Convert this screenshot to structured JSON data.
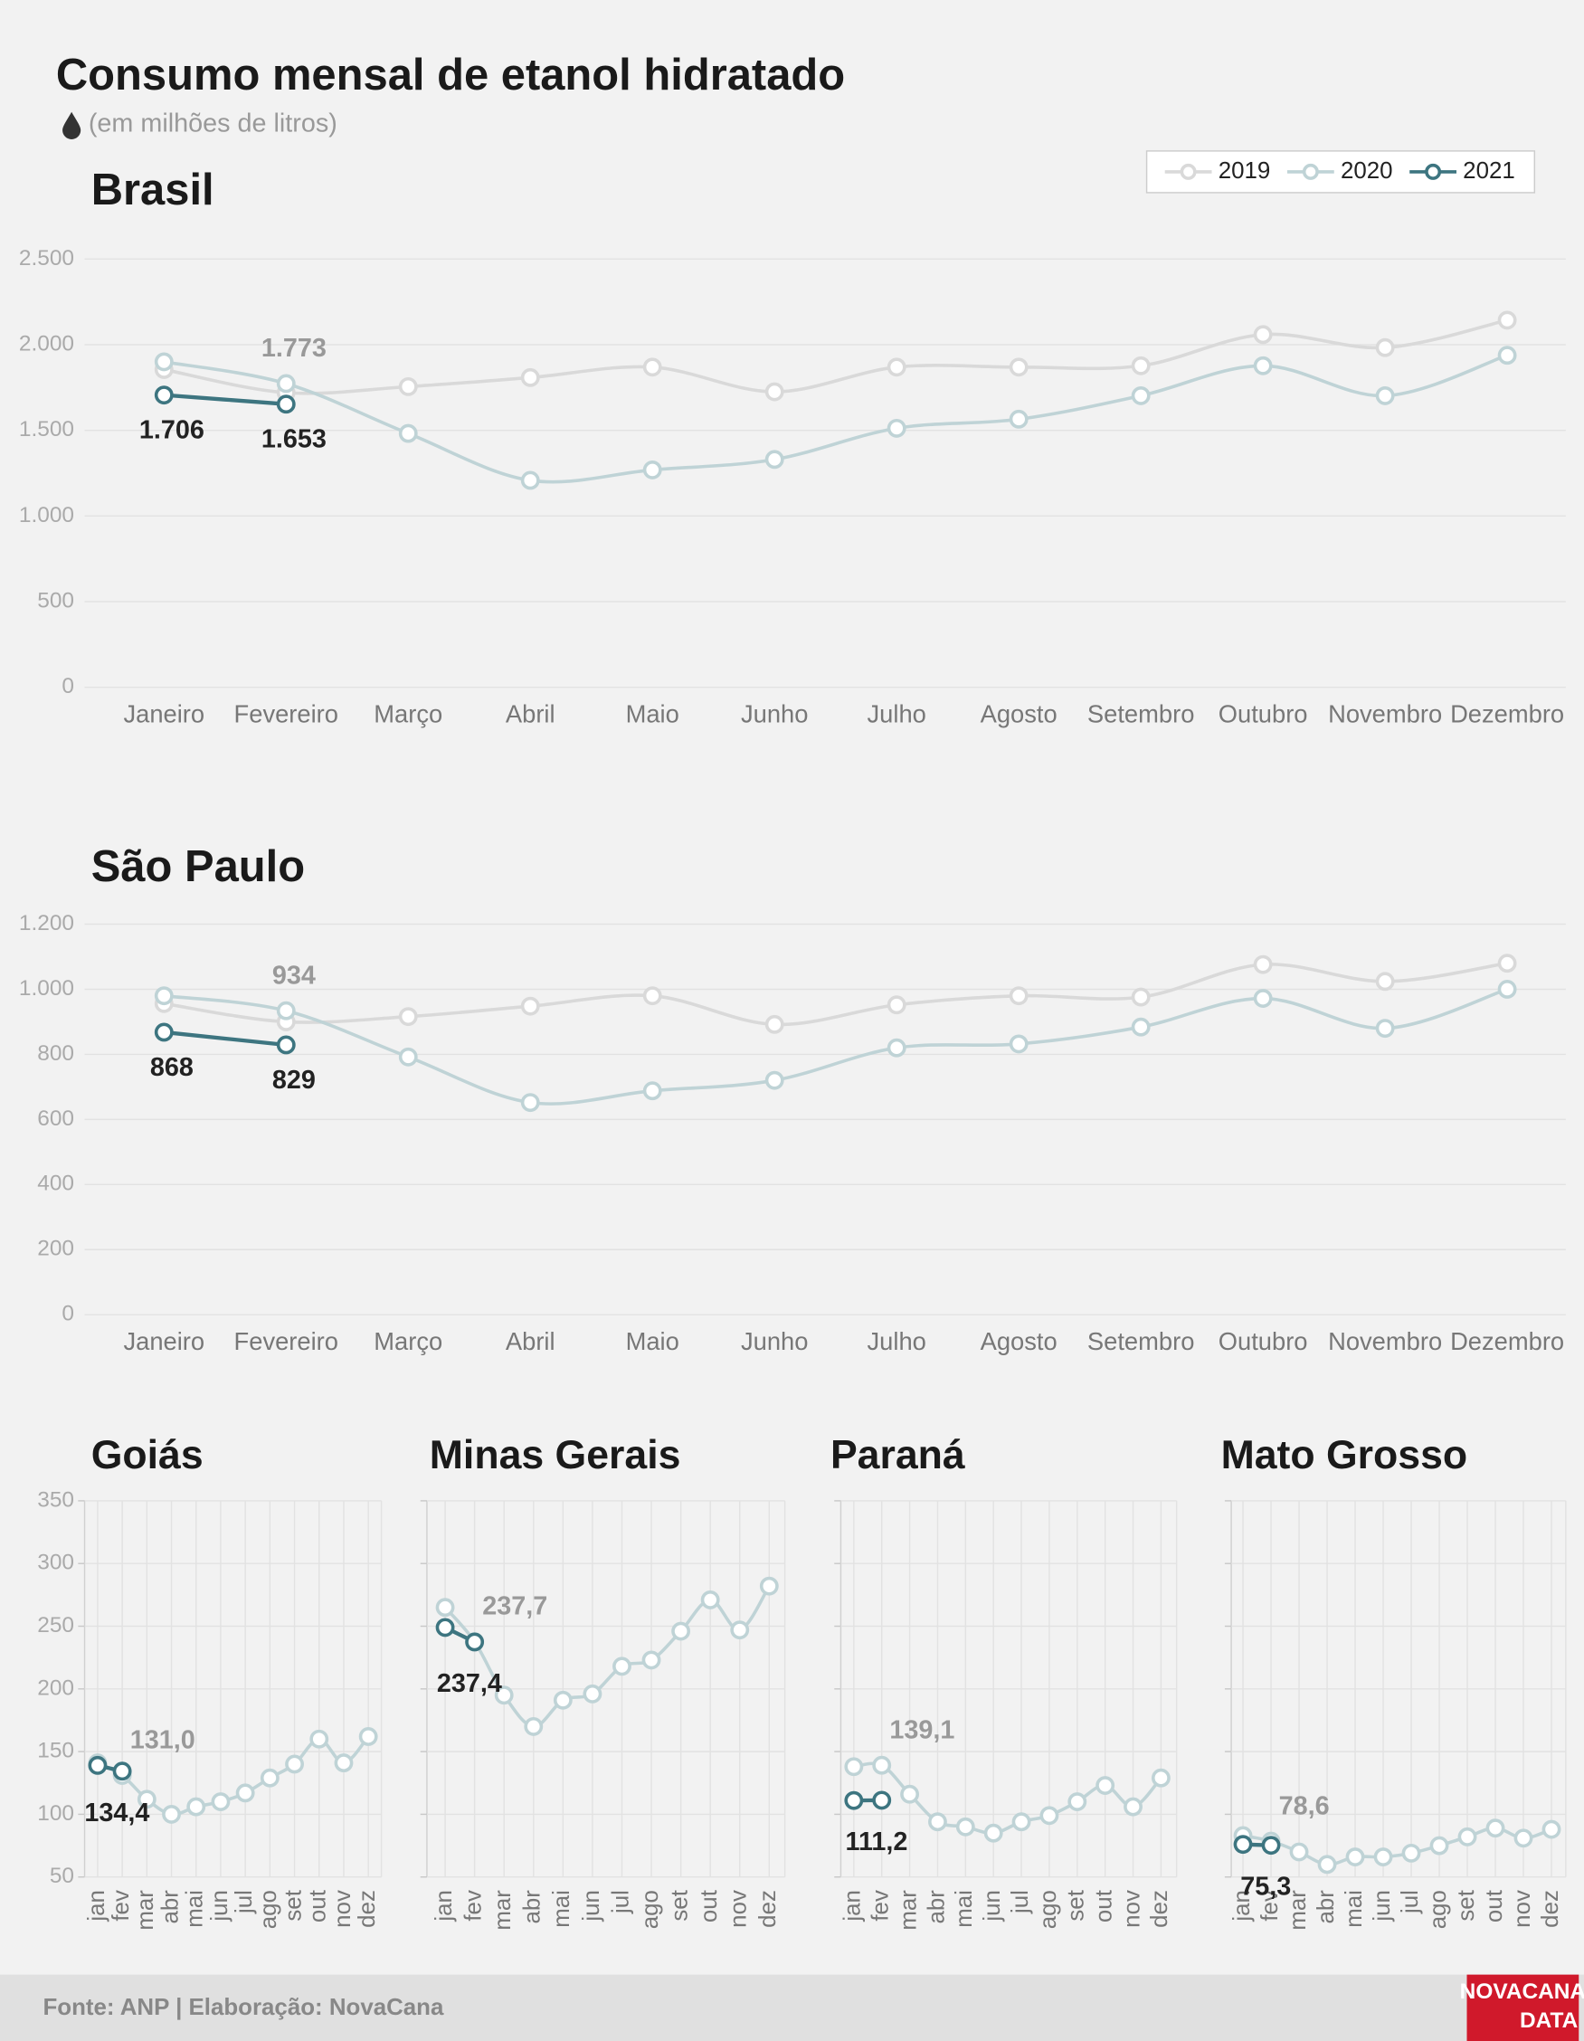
{
  "header": {
    "title": "Consumo mensal de etanol hidratado",
    "subtitle": "(em milhões de litros)"
  },
  "footer": {
    "source": "Fonte: ANP | Elaboração: NovaCana",
    "logo": [
      "NOVACANA",
      "DATA"
    ]
  },
  "chart_data": [
    {
      "type": "line",
      "title": "Brasil",
      "legend": "upper right",
      "grid": "y",
      "categories": [
        "Janeiro",
        "Fevereiro",
        "Março",
        "Abril",
        "Maio",
        "Junho",
        "Julho",
        "Agosto",
        "Setembro",
        "Outubro",
        "Novembro",
        "Dezembro"
      ],
      "ylim": [
        0,
        2500
      ],
      "yticks": [
        0,
        500,
        {
          "value": 1000,
          "label": "1.000"
        },
        {
          "value": 1500,
          "label": "1.500"
        },
        {
          "value": 2000,
          "label": "2.000"
        },
        {
          "value": 2500,
          "label": "2.500"
        }
      ],
      "series": [
        {
          "name": "2019",
          "color": "#d9d9d9",
          "values": [
            1855,
            1720,
            1755,
            1808,
            1869,
            1725,
            1869,
            1869,
            1877,
            2059,
            1983,
            2143
          ]
        },
        {
          "name": "2020",
          "color": "#bfd3d6",
          "values": [
            1900,
            1773,
            1482,
            1208,
            1269,
            1330,
            1512,
            1565,
            1702,
            1877,
            1702,
            1938
          ],
          "value_labels": [
            null,
            "1.773",
            null,
            null,
            null,
            null,
            null,
            null,
            null,
            null,
            null,
            null
          ]
        },
        {
          "name": "2021",
          "color": "#3d7580",
          "values": [
            1706,
            1653,
            null,
            null,
            null,
            null,
            null,
            null,
            null,
            null,
            null,
            null
          ],
          "value_labels": [
            "1.706",
            "1.653",
            null,
            null,
            null,
            null,
            null,
            null,
            null,
            null,
            null,
            null
          ]
        }
      ]
    },
    {
      "type": "line",
      "title": "São Paulo",
      "grid": "y",
      "categories": [
        "Janeiro",
        "Fevereiro",
        "Março",
        "Abril",
        "Maio",
        "Junho",
        "Julho",
        "Agosto",
        "Setembro",
        "Outubro",
        "Novembro",
        "Dezembro"
      ],
      "ylim": [
        0,
        1200
      ],
      "yticks": [
        0,
        200,
        400,
        600,
        800,
        {
          "value": 1000,
          "label": "1.000"
        },
        {
          "value": 1200,
          "label": "1.200"
        }
      ],
      "series": [
        {
          "name": "2019",
          "color": "#d9d9d9",
          "values": [
            956,
            900,
            916,
            948,
            980,
            892,
            952,
            980,
            976,
            1076,
            1024,
            1080
          ]
        },
        {
          "name": "2020",
          "color": "#bfd3d6",
          "values": [
            980,
            934,
            792,
            652,
            688,
            720,
            820,
            832,
            884,
            972,
            880,
            1000
          ],
          "value_labels": [
            null,
            "934",
            null,
            null,
            null,
            null,
            null,
            null,
            null,
            null,
            null,
            null
          ]
        },
        {
          "name": "2021",
          "color": "#3d7580",
          "values": [
            868,
            829,
            null,
            null,
            null,
            null,
            null,
            null,
            null,
            null,
            null,
            null
          ],
          "value_labels": [
            "868",
            "829",
            null,
            null,
            null,
            null,
            null,
            null,
            null,
            null,
            null,
            null
          ]
        }
      ]
    },
    {
      "type": "line",
      "title": "Goiás",
      "grid": "both",
      "ytick_labels": true,
      "categories": [
        "jan",
        "fev",
        "mar",
        "abr",
        "mai",
        "jun",
        "jul",
        "ago",
        "set",
        "out",
        "nov",
        "dez"
      ],
      "ylim": [
        50,
        350
      ],
      "yticks": [
        50,
        100,
        150,
        200,
        250,
        300,
        350
      ],
      "series": [
        {
          "name": "2020",
          "color": "#bfd3d6",
          "values": [
            141,
            131,
            112,
            100,
            106,
            110,
            117,
            129,
            140,
            160,
            141,
            162
          ],
          "value_labels": [
            null,
            "131,0",
            null,
            null,
            null,
            null,
            null,
            null,
            null,
            null,
            null,
            null
          ]
        },
        {
          "name": "2021",
          "color": "#3d7580",
          "values": [
            139,
            134.4,
            null,
            null,
            null,
            null,
            null,
            null,
            null,
            null,
            null,
            null
          ],
          "value_labels": [
            null,
            "134,4",
            null,
            null,
            null,
            null,
            null,
            null,
            null,
            null,
            null,
            null
          ]
        }
      ]
    },
    {
      "type": "line",
      "title": "Minas Gerais",
      "grid": "both",
      "ytick_labels": false,
      "categories": [
        "jan",
        "fev",
        "mar",
        "abr",
        "mai",
        "jun",
        "jul",
        "ago",
        "set",
        "out",
        "nov",
        "dez"
      ],
      "ylim": [
        50,
        350
      ],
      "yticks": [
        50,
        100,
        150,
        200,
        250,
        300,
        350
      ],
      "series": [
        {
          "name": "2020",
          "color": "#bfd3d6",
          "values": [
            265,
            237.7,
            195,
            170,
            191,
            196,
            218,
            223,
            246,
            271,
            247,
            282
          ],
          "value_labels": [
            null,
            "237,7",
            null,
            null,
            null,
            null,
            null,
            null,
            null,
            null,
            null,
            null
          ]
        },
        {
          "name": "2021",
          "color": "#3d7580",
          "values": [
            249,
            237.4,
            null,
            null,
            null,
            null,
            null,
            null,
            null,
            null,
            null,
            null
          ],
          "value_labels": [
            null,
            "237,4",
            null,
            null,
            null,
            null,
            null,
            null,
            null,
            null,
            null,
            null
          ]
        }
      ]
    },
    {
      "type": "line",
      "title": "Paraná",
      "grid": "both",
      "ytick_labels": false,
      "categories": [
        "jan",
        "fev",
        "mar",
        "abr",
        "mai",
        "jun",
        "jul",
        "ago",
        "set",
        "out",
        "nov",
        "dez"
      ],
      "ylim": [
        50,
        350
      ],
      "yticks": [
        50,
        100,
        150,
        200,
        250,
        300,
        350
      ],
      "series": [
        {
          "name": "2020",
          "color": "#bfd3d6",
          "values": [
            138,
            139.1,
            116,
            94,
            90,
            85,
            94,
            99,
            110,
            123,
            106,
            129
          ],
          "value_labels": [
            null,
            "139,1",
            null,
            null,
            null,
            null,
            null,
            null,
            null,
            null,
            null,
            null
          ]
        },
        {
          "name": "2021",
          "color": "#3d7580",
          "values": [
            111,
            111.2,
            null,
            null,
            null,
            null,
            null,
            null,
            null,
            null,
            null,
            null
          ],
          "value_labels": [
            null,
            "111,2",
            null,
            null,
            null,
            null,
            null,
            null,
            null,
            null,
            null,
            null
          ]
        }
      ]
    },
    {
      "type": "line",
      "title": "Mato Grosso",
      "grid": "both",
      "ytick_labels": false,
      "categories": [
        "jan",
        "fev",
        "mar",
        "abr",
        "mai",
        "jun",
        "jul",
        "ago",
        "set",
        "out",
        "nov",
        "dez"
      ],
      "ylim": [
        50,
        350
      ],
      "yticks": [
        50,
        100,
        150,
        200,
        250,
        300,
        350
      ],
      "series": [
        {
          "name": "2020",
          "color": "#bfd3d6",
          "values": [
            83,
            78.6,
            70,
            60,
            66,
            66,
            69,
            75,
            82,
            89,
            81,
            88
          ],
          "value_labels": [
            null,
            "78,6",
            null,
            null,
            null,
            null,
            null,
            null,
            null,
            null,
            null,
            null
          ]
        },
        {
          "name": "2021",
          "color": "#3d7580",
          "values": [
            76,
            75.3,
            null,
            null,
            null,
            null,
            null,
            null,
            null,
            null,
            null,
            null
          ],
          "value_labels": [
            null,
            "75,3",
            null,
            null,
            null,
            null,
            null,
            null,
            null,
            null,
            null,
            null
          ]
        }
      ]
    }
  ]
}
